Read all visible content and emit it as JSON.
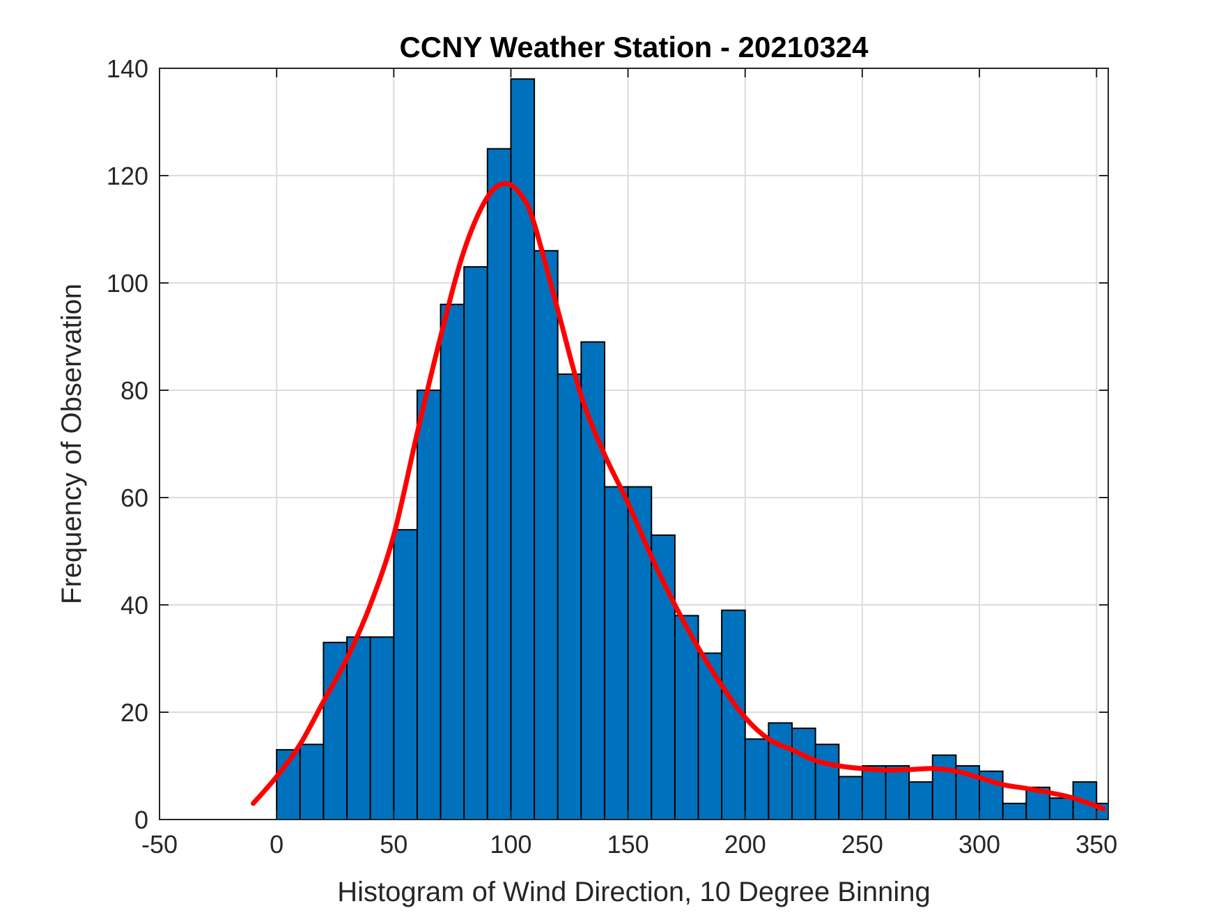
{
  "chart_data": {
    "type": "bar",
    "title": "CCNY Weather Station - 20210324",
    "xlabel": "Histogram of Wind Direction, 10 Degree Binning",
    "ylabel": "Frequency of Observation",
    "xlim": [
      -50,
      355
    ],
    "ylim": [
      0,
      140
    ],
    "grid": true,
    "xticks": [
      -50,
      0,
      50,
      100,
      150,
      200,
      250,
      300,
      350
    ],
    "yticks": [
      0,
      20,
      40,
      60,
      80,
      100,
      120,
      140
    ],
    "bin_width": 10,
    "bin_edges": [
      0,
      10,
      20,
      30,
      40,
      50,
      60,
      70,
      80,
      90,
      100,
      110,
      120,
      130,
      140,
      150,
      160,
      170,
      180,
      190,
      200,
      210,
      220,
      230,
      240,
      250,
      260,
      270,
      280,
      290,
      300,
      310,
      320,
      330,
      340,
      350,
      355
    ],
    "values": [
      13,
      14,
      33,
      34,
      34,
      54,
      80,
      96,
      103,
      125,
      138,
      106,
      83,
      89,
      62,
      62,
      53,
      38,
      31,
      39,
      15,
      18,
      17,
      14,
      8,
      10,
      10,
      7,
      12,
      10,
      9,
      3,
      6,
      4,
      7,
      3
    ],
    "series": [
      {
        "name": "histogram",
        "color": "#0072BD",
        "edgecolor": "#000000"
      },
      {
        "name": "fit",
        "type": "line",
        "color": "#FF0000",
        "x": [
          -10,
          0,
          10,
          20,
          30,
          40,
          50,
          60,
          70,
          80,
          90,
          98,
          105,
          110,
          120,
          130,
          140,
          150,
          160,
          170,
          180,
          190,
          200,
          210,
          220,
          230,
          240,
          250,
          260,
          270,
          280,
          290,
          300,
          310,
          320,
          330,
          340,
          353
        ],
        "y": [
          3,
          8,
          14,
          22,
          30,
          40,
          53,
          72,
          90,
          106,
          116,
          118.5,
          116,
          111,
          95,
          79,
          68,
          59,
          49,
          40,
          32,
          25,
          19,
          15,
          13,
          11,
          10,
          9.5,
          9.2,
          9.3,
          9.5,
          9.0,
          7.8,
          6.5,
          5.8,
          5.0,
          4.0,
          2.0
        ]
      }
    ]
  }
}
